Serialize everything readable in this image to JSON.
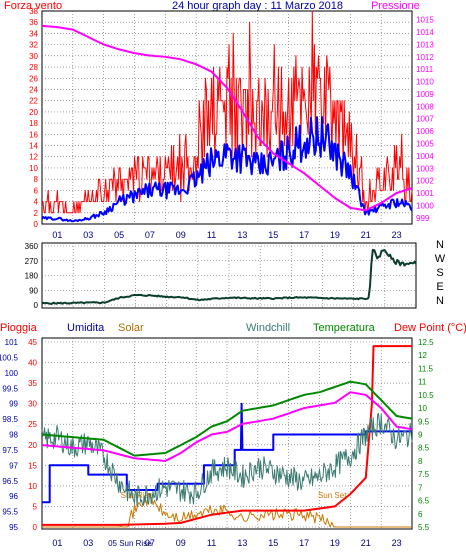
{
  "chart_data": [
    {
      "type": "line",
      "title": "24 hour graph day : 11 Marzo 2018",
      "left_axis_label": "Forza vento",
      "right_axis_label": "Pressione",
      "x_tick_labels": [
        "01",
        "03",
        "05",
        "07",
        "09",
        "11",
        "13",
        "15",
        "17",
        "19",
        "21",
        "23"
      ],
      "y_left_ticks": [
        "0",
        "2",
        "4",
        "6",
        "8",
        "10",
        "12",
        "14",
        "16",
        "18",
        "20",
        "22",
        "24",
        "26",
        "28",
        "30",
        "32",
        "34",
        "36",
        "38"
      ],
      "y_left_range": [
        0,
        38
      ],
      "y_right_ticks": [
        "999",
        "1000",
        "1001",
        "1002",
        "1003",
        "1004",
        "1005",
        "1006",
        "1007",
        "1008",
        "1009",
        "1010",
        "1011",
        "1012",
        "1013",
        "1014",
        "1015"
      ],
      "y_right_range": [
        998.5,
        1015.7
      ],
      "grid": true,
      "colors": {
        "gust": "#ff0000",
        "wind": "#0000ff",
        "pressure": "#ff00ff",
        "left_label": "#ff0000",
        "title": "#0000aa",
        "right_label": "#ff00ff"
      },
      "series": [
        {
          "key": "gust",
          "x": [
            0,
            1,
            2,
            3,
            4,
            5,
            6,
            7,
            8,
            9,
            10,
            11,
            12,
            13,
            14,
            15,
            16,
            17,
            18,
            19,
            20,
            21,
            22,
            23,
            24
          ],
          "y": [
            4,
            3,
            2,
            4,
            6,
            7,
            8,
            9,
            9,
            9,
            12,
            19,
            20,
            19,
            18,
            18,
            20,
            23,
            23,
            19,
            14,
            4,
            8,
            10,
            5
          ]
        },
        {
          "key": "wind",
          "x": [
            0,
            1,
            2,
            3,
            4,
            5,
            6,
            7,
            8,
            9,
            10,
            11,
            12,
            13,
            14,
            15,
            16,
            17,
            18,
            19,
            20,
            21,
            22,
            23,
            24
          ],
          "y": [
            1,
            1,
            0.5,
            1,
            2,
            4,
            5,
            6,
            6,
            6,
            8,
            11,
            13,
            12,
            10,
            11,
            13,
            15,
            16,
            13,
            9,
            2,
            3,
            4,
            3
          ]
        },
        {
          "key": "pressure",
          "x": [
            0,
            1,
            2,
            3,
            4,
            5,
            6,
            7,
            8,
            9,
            10,
            11,
            12,
            13,
            14,
            15,
            16,
            17,
            18,
            19,
            20,
            21,
            22,
            23,
            24
          ],
          "y": [
            1014.5,
            1014.4,
            1014.2,
            1013.6,
            1013.0,
            1012.6,
            1012.3,
            1012.1,
            1012.0,
            1011.8,
            1011.4,
            1010.8,
            1009.5,
            1007.6,
            1005.5,
            1004.2,
            1003.4,
            1002.6,
            1001.6,
            1000.6,
            999.8,
            999.6,
            1000.2,
            1001.0,
            1001.4
          ]
        }
      ]
    },
    {
      "type": "line",
      "right_labels": [
        "N",
        "W",
        "S",
        "E",
        "N"
      ],
      "y_ticks": [
        "0",
        "90",
        "180",
        "270",
        "360"
      ],
      "y_range": [
        0,
        360
      ],
      "x_range": [
        0,
        24
      ],
      "colors": {
        "direction": "#0b3d2e"
      },
      "series": [
        {
          "key": "direction",
          "x": [
            0,
            2,
            4,
            5,
            6,
            7,
            8,
            9,
            10,
            11,
            12,
            13,
            14,
            15,
            16,
            17,
            18,
            19,
            20,
            21,
            21.2,
            21.5,
            22,
            22.5,
            23,
            24
          ],
          "y": [
            10,
            12,
            15,
            45,
            60,
            58,
            50,
            48,
            30,
            38,
            45,
            42,
            40,
            40,
            45,
            45,
            42,
            40,
            38,
            40,
            345,
            290,
            340,
            270,
            255,
            250
          ]
        }
      ]
    },
    {
      "type": "line",
      "legend": [
        {
          "key": "pioggia",
          "label": "Pioggia"
        },
        {
          "key": "umidita",
          "label": "Umidita"
        },
        {
          "key": "solar",
          "label": "Solar"
        },
        {
          "key": "windchill",
          "label": "Windchill"
        },
        {
          "key": "temperatura",
          "label": "Temperatura"
        },
        {
          "key": "dewpoint",
          "label": "Dew Point (°C)"
        }
      ],
      "y_left_ticks": [
        "0",
        "5",
        "10",
        "15",
        "20",
        "25",
        "30",
        "35",
        "40",
        "45"
      ],
      "y_left_range": [
        0,
        45
      ],
      "y_humidity_ticks": [
        "95",
        "95.5",
        "96",
        "96.5",
        "97",
        "97.5",
        "98",
        "98.5",
        "99",
        "99.5",
        "100",
        "100.5",
        "101"
      ],
      "y_humidity_range": [
        95,
        101
      ],
      "y_right_ticks": [
        "5.5",
        "6",
        "6.5",
        "7",
        "7.5",
        "8",
        "8.5",
        "9",
        "9.5",
        "10",
        "10.5",
        "11",
        "11.5",
        "12",
        "12.5"
      ],
      "y_right_range": [
        5.5,
        12.5
      ],
      "x_tick_labels": [
        "01",
        "03",
        "05",
        "07",
        "09",
        "11",
        "13",
        "15",
        "17",
        "19",
        "21",
        "23"
      ],
      "annotations": {
        "sunrise": "Sun Rise",
        "sunset": "Sun Set",
        "sunrise_bottom": "05 Sun Rise"
      },
      "colors": {
        "pioggia": "#ff0000",
        "umidita": "#0000ff",
        "solar": "#cc7700",
        "windchill": "#3a7a70",
        "temperatura": "#008800",
        "dewpoint": "#ff00ff"
      },
      "series": [
        {
          "key": "temperatura",
          "x": [
            0,
            2,
            4,
            6,
            8,
            9,
            10,
            11,
            12,
            13,
            14,
            15,
            16,
            17,
            18,
            19,
            20,
            21,
            22,
            23,
            24
          ],
          "y": [
            9.0,
            8.9,
            8.8,
            8.2,
            8.3,
            8.6,
            8.9,
            9.3,
            9.5,
            9.9,
            10.0,
            10.1,
            10.3,
            10.5,
            10.6,
            10.8,
            11.0,
            10.9,
            10.3,
            9.7,
            9.6
          ]
        },
        {
          "key": "dewpoint",
          "x": [
            0,
            2,
            4,
            6,
            8,
            9,
            10,
            11,
            12,
            13,
            14,
            15,
            16,
            17,
            18,
            19,
            20,
            21,
            22,
            23,
            24
          ],
          "y": [
            8.6,
            8.5,
            8.4,
            8.1,
            8.0,
            8.3,
            8.7,
            9.0,
            9.1,
            9.4,
            9.5,
            9.6,
            9.8,
            10.0,
            10.1,
            10.2,
            10.6,
            10.5,
            10.0,
            9.3,
            9.2
          ]
        },
        {
          "key": "windchill",
          "x": [
            0,
            1,
            2,
            3,
            4,
            5,
            6,
            7,
            8,
            9,
            10,
            11,
            12,
            13,
            14,
            15,
            16,
            17,
            18,
            19,
            20,
            21,
            22,
            23,
            24
          ],
          "y": [
            8.8,
            8.9,
            8.5,
            8.7,
            8.2,
            7.2,
            6.6,
            6.8,
            7.0,
            6.9,
            6.8,
            7.6,
            7.8,
            7.4,
            7.8,
            7.6,
            7.4,
            7.2,
            7.4,
            7.8,
            8.2,
            9.0,
            9.5,
            8.8,
            9.0
          ]
        },
        {
          "key": "umidita",
          "x": [
            0,
            0.5,
            0.5,
            3,
            3,
            5.5,
            5.5,
            7.5,
            7.5,
            10.5,
            10.5,
            12.5,
            12.5,
            15,
            15,
            21,
            21,
            24
          ],
          "y": [
            95.8,
            95.8,
            97.0,
            97.0,
            96.7,
            96.7,
            96.2,
            96.2,
            96.4,
            96.4,
            97.0,
            97.0,
            97.5,
            97.5,
            98.0,
            98.0,
            98.1,
            98.1
          ]
        },
        {
          "key": "solar",
          "x": [
            0,
            5,
            5.5,
            6,
            6.5,
            7,
            7.5,
            8,
            9,
            10,
            11,
            12,
            13,
            14,
            15,
            16,
            17,
            18,
            18.5,
            19,
            24
          ],
          "y": [
            0,
            0,
            1,
            4,
            6,
            7,
            5,
            3,
            2,
            3,
            4,
            4,
            2,
            3,
            3,
            3,
            3,
            2,
            1,
            0,
            0
          ]
        },
        {
          "key": "pioggia",
          "x": [
            0,
            5,
            6,
            8,
            9,
            10,
            11,
            12,
            13,
            14,
            15,
            16,
            17,
            18,
            19,
            20,
            21,
            21.4,
            21.5,
            22,
            24
          ],
          "y": [
            0.5,
            0.5,
            0.6,
            0.8,
            1,
            2,
            3,
            3.5,
            4,
            4,
            4,
            4,
            4,
            4.5,
            5,
            8,
            12,
            30,
            44,
            44,
            44
          ]
        }
      ]
    }
  ]
}
